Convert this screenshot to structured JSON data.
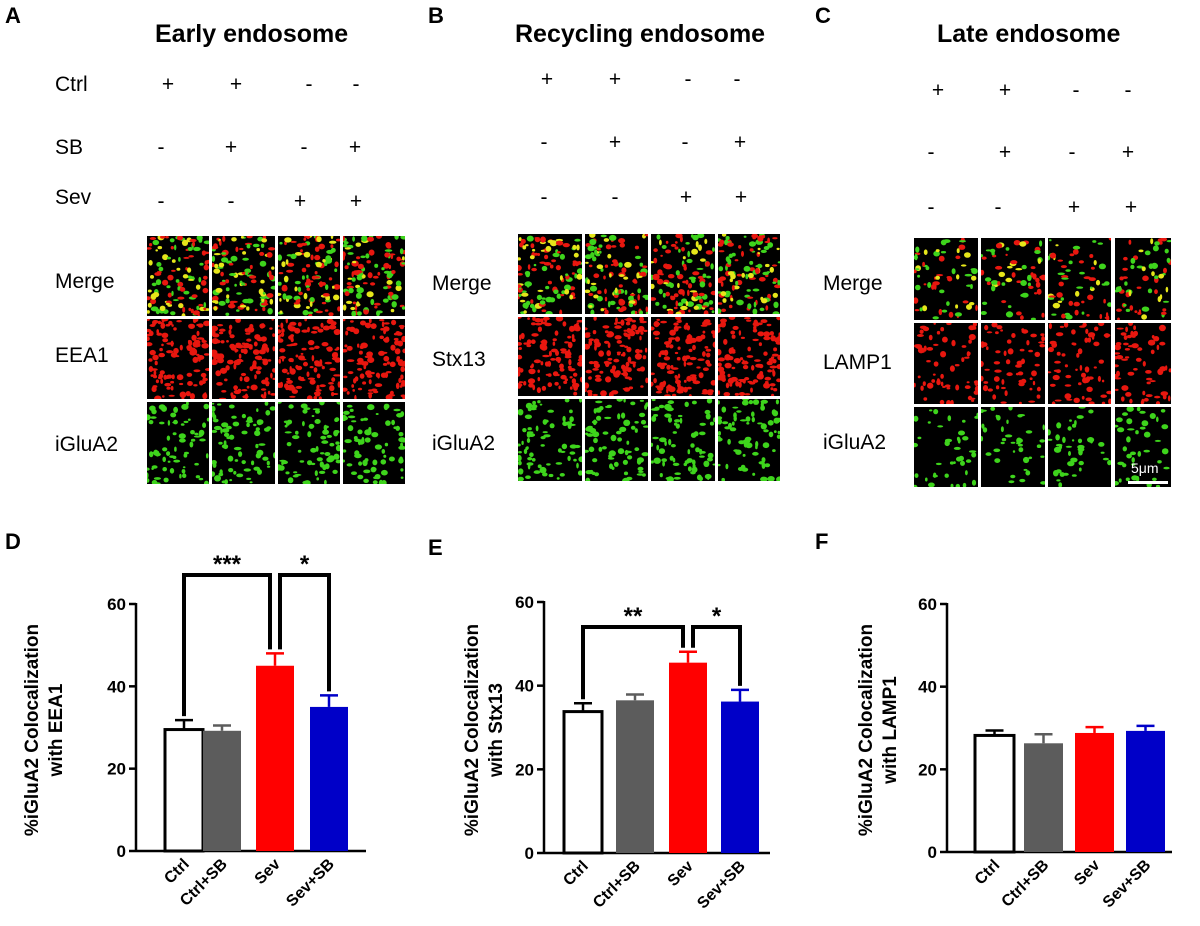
{
  "panels": [
    {
      "letter": "A",
      "title": "Early endosome",
      "condition_rows": [
        {
          "label": "Ctrl",
          "signs": [
            "+",
            "+",
            "-",
            "-"
          ]
        },
        {
          "label": "SB",
          "signs": [
            "-",
            "+",
            "-",
            "+"
          ]
        },
        {
          "label": "Sev",
          "signs": [
            "-",
            "-",
            "+",
            "+"
          ]
        }
      ],
      "image_rows": [
        "Merge",
        "EEA1",
        "iGluA2"
      ]
    },
    {
      "letter": "B",
      "title": "Recycling endosome",
      "condition_rows": [
        {
          "label": "",
          "signs": [
            "+",
            "+",
            "-",
            "-"
          ]
        },
        {
          "label": "",
          "signs": [
            "-",
            "+",
            "-",
            "+"
          ]
        },
        {
          "label": "",
          "signs": [
            "-",
            "-",
            "+",
            "+"
          ]
        }
      ],
      "image_rows": [
        "Merge",
        "Stx13",
        "iGluA2"
      ]
    },
    {
      "letter": "C",
      "title": "Late endosome",
      "condition_rows": [
        {
          "label": "",
          "signs": [
            "+",
            "+",
            "-",
            "-"
          ]
        },
        {
          "label": "",
          "signs": [
            "-",
            "+",
            "-",
            "+"
          ]
        },
        {
          "label": "",
          "signs": [
            "-",
            "-",
            "+",
            "+"
          ]
        }
      ],
      "image_rows": [
        "Merge",
        "LAMP1",
        "iGluA2"
      ],
      "scale_bar": "5μm"
    }
  ],
  "colors": {
    "merge_red": "#e8170f",
    "merge_green": "#3ed41c",
    "merge_yellow": "#e6e61a",
    "bar_ctrl": "#ffffff",
    "bar_ctrl_sb": "#5c5c5c",
    "bar_sev": "#ff0000",
    "bar_sev_sb": "#0000c8"
  },
  "chart_data": [
    {
      "letter": "D",
      "type": "bar",
      "ylabel": [
        "%iGluA2 Colocalization",
        "with EEA1"
      ],
      "categories": [
        "Ctrl",
        "Ctrl+SB",
        "Sev",
        "Sev+SB"
      ],
      "values": [
        29.5,
        29.2,
        45,
        35
      ],
      "errors": [
        2.3,
        1.3,
        3.0,
        2.8
      ],
      "ylim": [
        0,
        60
      ],
      "yticks": [
        0,
        20,
        40,
        60
      ],
      "significance": [
        {
          "from": 0,
          "to": 2,
          "label": "***"
        },
        {
          "from": 2,
          "to": 3,
          "label": "*"
        }
      ]
    },
    {
      "letter": "E",
      "type": "bar",
      "ylabel": [
        "%iGluA2 Colocalization",
        "with Stx13"
      ],
      "categories": [
        "Ctrl",
        "Ctrl+SB",
        "Sev",
        "Sev+SB"
      ],
      "values": [
        33.8,
        36.5,
        45.5,
        36.2
      ],
      "errors": [
        2.0,
        1.4,
        2.6,
        2.8
      ],
      "ylim": [
        0,
        60
      ],
      "yticks": [
        0,
        20,
        40,
        60
      ],
      "significance": [
        {
          "from": 0,
          "to": 2,
          "label": "**"
        },
        {
          "from": 2,
          "to": 3,
          "label": "*"
        }
      ]
    },
    {
      "letter": "F",
      "type": "bar",
      "ylabel": [
        "%iGluA2 Colocalization",
        "with LAMP1"
      ],
      "categories": [
        "Ctrl",
        "Ctrl+SB",
        "Sev",
        "Sev+SB"
      ],
      "values": [
        28.2,
        26.3,
        28.8,
        29.3
      ],
      "errors": [
        1.2,
        2.2,
        1.4,
        1.2
      ],
      "ylim": [
        0,
        60
      ],
      "yticks": [
        0,
        20,
        40,
        60
      ],
      "significance": []
    }
  ]
}
